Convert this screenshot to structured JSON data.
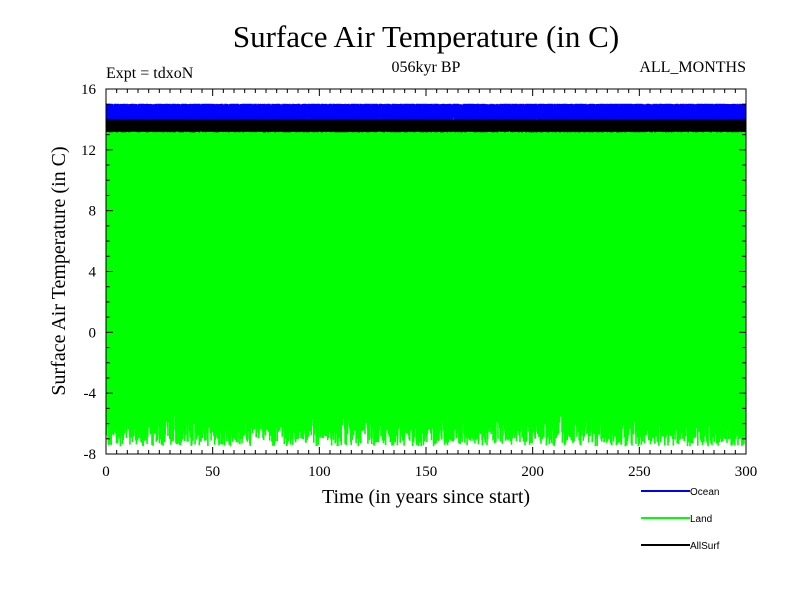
{
  "chart_data": {
    "type": "line",
    "title": "Surface Air Temperature (in C)",
    "subtitle_left": "Expt = tdxoN",
    "subtitle_center": "056kyr BP",
    "subtitle_right": "ALL_MONTHS",
    "xlabel": "Time (in years since start)",
    "ylabel": "Surface Air Temperature (in C)",
    "xlim": [
      0,
      300
    ],
    "ylim": [
      -8,
      16
    ],
    "xticks": [
      0,
      50,
      100,
      150,
      200,
      250,
      300
    ],
    "yticks": [
      -8,
      -4,
      0,
      4,
      8,
      12,
      16
    ],
    "grid": false,
    "legend_position": "bottom-right, outside plot",
    "series": [
      {
        "name": "Ocean",
        "color": "#0000ff",
        "seasonal_min": 14.0,
        "seasonal_max": 15.0,
        "mean": 14.6
      },
      {
        "name": "Land",
        "color": "#00ff00",
        "seasonal_min": -6.3,
        "seasonal_max": 13.6,
        "mean": 3.7
      },
      {
        "name": "AllSurf",
        "color": "#000000",
        "seasonal_min": 13.2,
        "seasonal_max": 14.0,
        "mean": 13.7
      }
    ]
  }
}
